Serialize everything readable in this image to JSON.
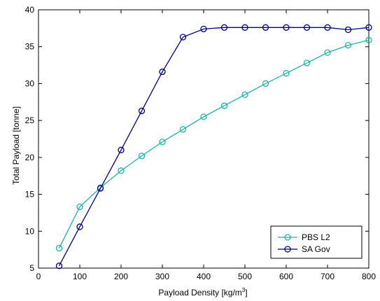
{
  "chart_data": {
    "type": "line",
    "xlabel": "Payload Density [kg/m",
    "xlabel_sup": "3",
    "xlabel_end": "]",
    "ylabel": "Total Payload [tonne]",
    "xlim": [
      0,
      800
    ],
    "ylim": [
      5,
      40
    ],
    "xticks": [
      0,
      100,
      200,
      300,
      400,
      500,
      600,
      700,
      800
    ],
    "yticks": [
      5,
      10,
      15,
      20,
      25,
      30,
      35,
      40
    ],
    "grid": false,
    "legend_position": "bottom-right",
    "x": [
      50,
      100,
      150,
      200,
      250,
      300,
      350,
      400,
      450,
      500,
      550,
      600,
      650,
      700,
      750,
      800
    ],
    "series": [
      {
        "name": "PBS L2",
        "color": "#20b2aa",
        "values": [
          7.7,
          13.3,
          15.9,
          18.2,
          20.2,
          22.1,
          23.8,
          25.5,
          27.0,
          28.5,
          30.0,
          31.4,
          32.8,
          34.2,
          35.2,
          35.9
        ]
      },
      {
        "name": "SA Gov",
        "color": "#00008b",
        "values": [
          5.3,
          10.6,
          15.8,
          21.0,
          26.3,
          31.6,
          36.3,
          37.4,
          37.6,
          37.6,
          37.6,
          37.6,
          37.6,
          37.6,
          37.3,
          37.6
        ]
      }
    ]
  }
}
